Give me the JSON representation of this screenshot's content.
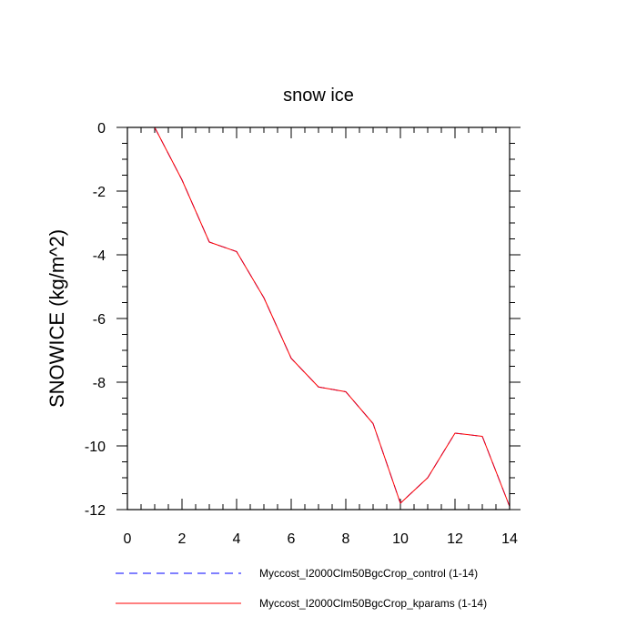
{
  "chart_data": {
    "type": "line",
    "title": "snow ice",
    "xlabel": "",
    "ylabel": "SNOWICE  (kg/m^2)",
    "xlim": [
      0,
      14
    ],
    "ylim": [
      -12,
      0
    ],
    "xticks": [
      0,
      2,
      4,
      6,
      8,
      10,
      12,
      14
    ],
    "yticks": [
      0,
      -2,
      -4,
      -6,
      -8,
      -10,
      -12
    ],
    "x": [
      1,
      2,
      3,
      4,
      5,
      6,
      7,
      8,
      9,
      10,
      11,
      12,
      13,
      14
    ],
    "series": [
      {
        "name": "Myccost_I2000Clm50BgcCrop_control (1-14)",
        "color": "#0000ff",
        "dash": "dashed",
        "values": [
          0,
          -1.65,
          -3.6,
          -3.9,
          -5.35,
          -7.25,
          -8.15,
          -8.3,
          -9.3,
          -11.8,
          -11.0,
          -9.6,
          -9.7,
          -11.9
        ]
      },
      {
        "name": "Myccost_I2000Clm50BgcCrop_kparams (1-14)",
        "color": "#ff0000",
        "dash": "solid",
        "values": [
          0,
          -1.65,
          -3.6,
          -3.9,
          -5.35,
          -7.25,
          -8.15,
          -8.3,
          -9.3,
          -11.8,
          -11.0,
          -9.6,
          -9.7,
          -11.9
        ]
      }
    ],
    "grid": false,
    "legend_position": "bottom"
  }
}
